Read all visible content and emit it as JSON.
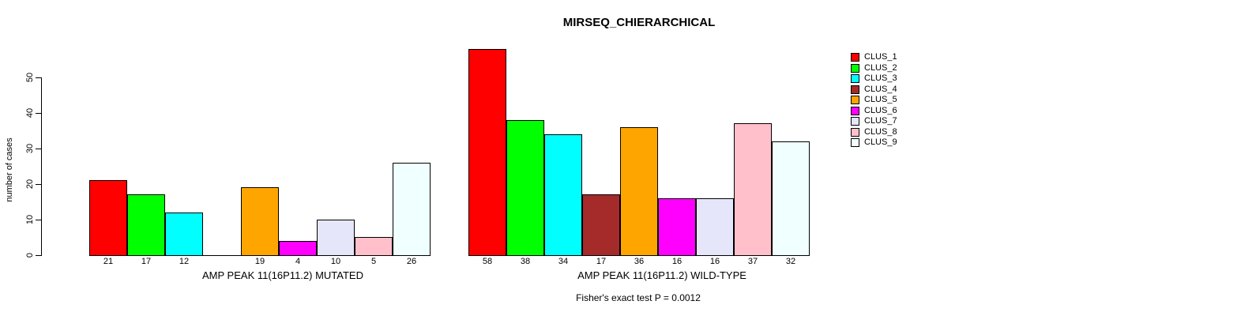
{
  "chart_data": {
    "type": "bar",
    "title": "MIRSEQ_CHIERARCHICAL",
    "ylabel": "number of cases",
    "ylim": [
      0,
      58
    ],
    "yticks": [
      0,
      10,
      20,
      30,
      40,
      50
    ],
    "grid": false,
    "legend_position": "right",
    "legend": [
      {
        "label": "CLUS_1",
        "color": "#FF0000"
      },
      {
        "label": "CLUS_2",
        "color": "#00FF00"
      },
      {
        "label": "CLUS_3",
        "color": "#00FFFF"
      },
      {
        "label": "CLUS_4",
        "color": "#A52A2A"
      },
      {
        "label": "CLUS_5",
        "color": "#FFA500"
      },
      {
        "label": "CLUS_6",
        "color": "#FF00FF"
      },
      {
        "label": "CLUS_7",
        "color": "#E6E6FA"
      },
      {
        "label": "CLUS_8",
        "color": "#FFC0CB"
      },
      {
        "label": "CLUS_9",
        "color": "#F0FFFF"
      }
    ],
    "groups": [
      {
        "xlabel": "AMP PEAK 11(16P11.2) MUTATED",
        "values": [
          21,
          17,
          12,
          0,
          19,
          4,
          10,
          5,
          26
        ]
      },
      {
        "xlabel": "AMP PEAK 11(16P11.2) WILD-TYPE",
        "values": [
          58,
          38,
          34,
          17,
          36,
          16,
          16,
          37,
          32
        ]
      }
    ],
    "footnote": "Fisher's exact test P = 0.0012"
  }
}
